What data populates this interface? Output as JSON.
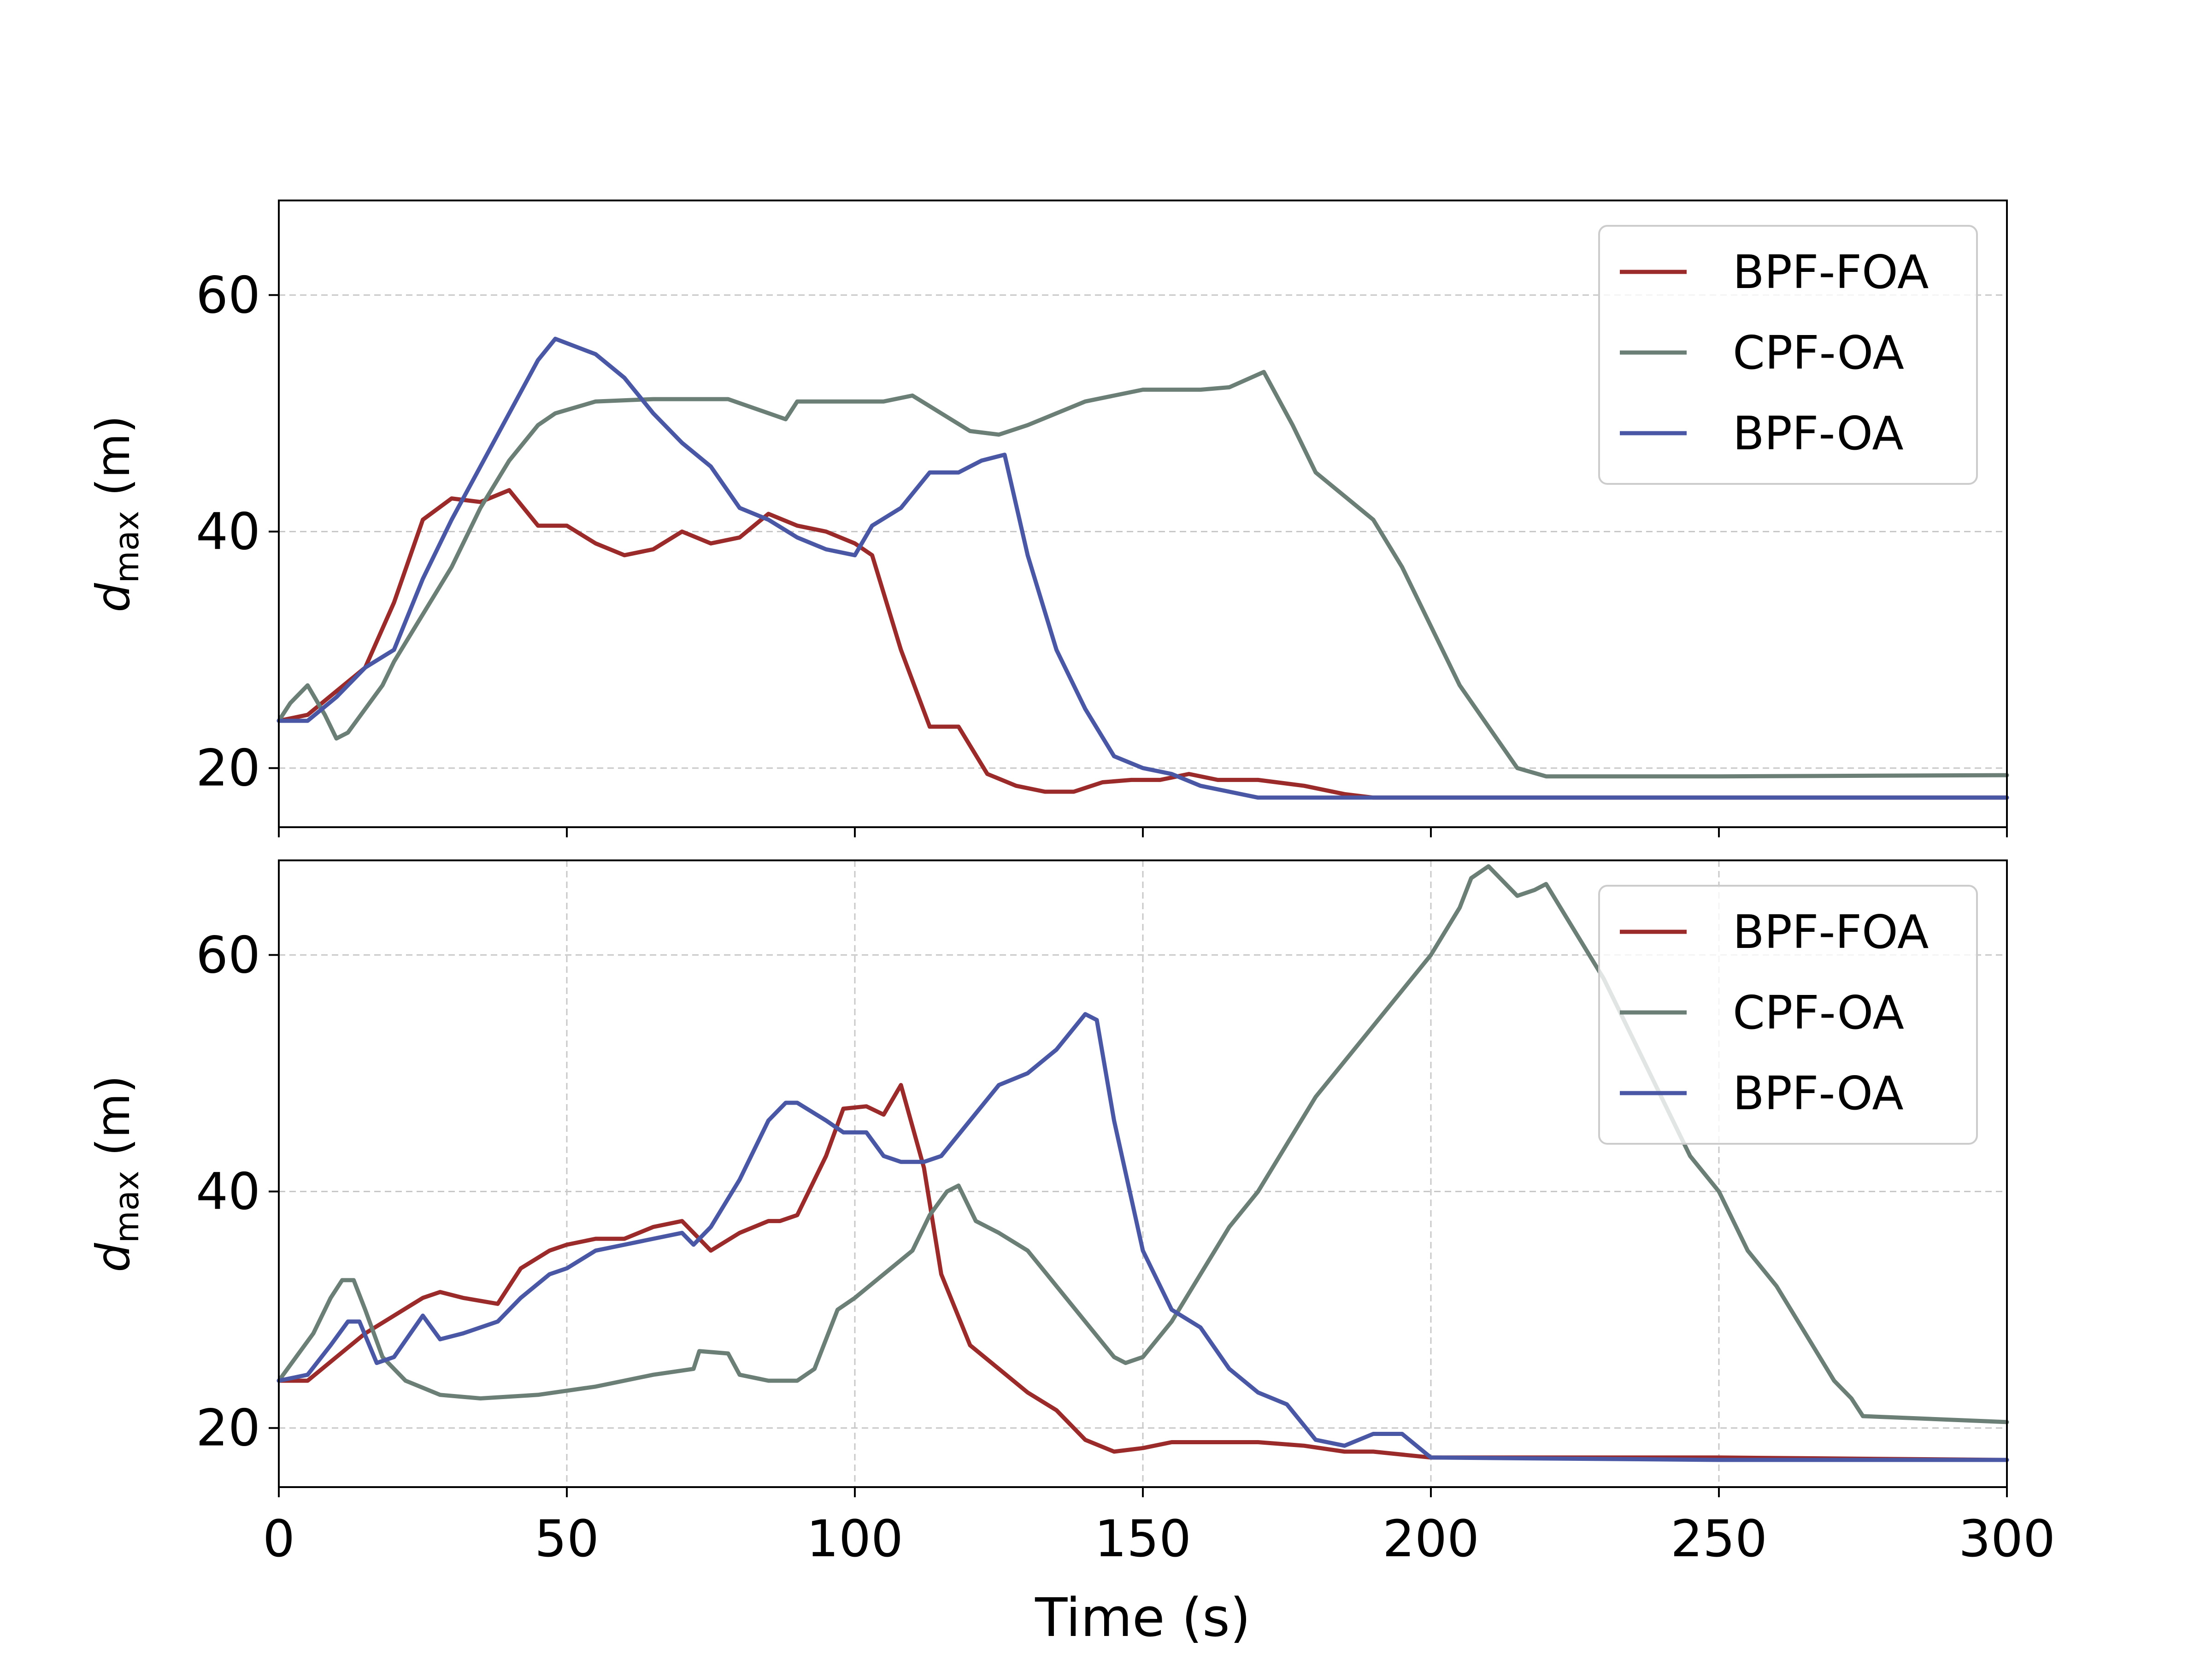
{
  "figure": {
    "xlabel": "Time (s)",
    "ylabel_main": "d",
    "ylabel_sub": "max",
    "ylabel_unit": " (m)"
  },
  "colors": {
    "BPF-FOA": "#9b2b2b",
    "CPF-OA": "#6b7f77",
    "BPF-OA": "#4a57a5"
  },
  "chart_data": [
    {
      "type": "line",
      "title": "",
      "xlabel": "",
      "ylabel": "d_max (m)",
      "xlim": [
        0,
        300
      ],
      "ylim": [
        15,
        68
      ],
      "yticks": [
        20,
        40,
        60
      ],
      "ytick_labels": [
        "20",
        "40",
        "60"
      ],
      "xtick_labels_shown": false,
      "grid": "horizontal dashed",
      "legend": "top-right",
      "series": [
        {
          "name": "BPF-FOA",
          "x": [
            0,
            5,
            10,
            15,
            20,
            25,
            30,
            35,
            40,
            45,
            50,
            55,
            60,
            65,
            70,
            75,
            80,
            85,
            90,
            95,
            100,
            103,
            108,
            113,
            118,
            123,
            128,
            133,
            138,
            143,
            148,
            153,
            158,
            163,
            170,
            178,
            185,
            190,
            200,
            220,
            250,
            280,
            300
          ],
          "y": [
            24,
            24.5,
            26.5,
            28.5,
            34,
            41,
            42.8,
            42.5,
            43.5,
            40.5,
            40.5,
            39,
            38,
            38.5,
            40,
            39,
            39.5,
            41.5,
            40.5,
            40,
            39,
            38,
            30,
            23.5,
            23.5,
            19.5,
            18.5,
            18,
            18,
            18.8,
            19,
            19,
            19.5,
            19,
            19,
            18.5,
            17.8,
            17.5,
            17.5,
            17.5,
            17.5,
            17.5,
            17.5
          ]
        },
        {
          "name": "CPF-OA",
          "x": [
            0,
            2,
            5,
            8,
            10,
            12,
            15,
            18,
            20,
            25,
            30,
            35,
            40,
            45,
            48,
            55,
            65,
            78,
            88,
            90,
            95,
            100,
            105,
            110,
            115,
            120,
            125,
            130,
            140,
            150,
            160,
            165,
            171,
            176,
            180,
            185,
            190,
            195,
            200,
            205,
            210,
            215,
            220,
            230,
            250,
            300
          ],
          "y": [
            24,
            25.5,
            27,
            24.5,
            22.5,
            23,
            25,
            27,
            29,
            33,
            37,
            42,
            46,
            49,
            50,
            51,
            51.2,
            51.2,
            49.5,
            51,
            51,
            51,
            51,
            51.5,
            50,
            48.5,
            48.2,
            49,
            51,
            52,
            52,
            52.2,
            53.5,
            49,
            45,
            43,
            41,
            37,
            32,
            27,
            23.5,
            20,
            19.3,
            19.3,
            19.3,
            19.4
          ]
        },
        {
          "name": "BPF-OA",
          "x": [
            0,
            5,
            10,
            15,
            20,
            25,
            30,
            35,
            40,
            45,
            48,
            55,
            60,
            65,
            70,
            75,
            80,
            85,
            90,
            95,
            100,
            103,
            108,
            113,
            118,
            122,
            126,
            130,
            135,
            140,
            145,
            150,
            155,
            160,
            165,
            170,
            180,
            190,
            200,
            250,
            300
          ],
          "y": [
            24,
            24,
            26,
            28.5,
            30,
            36,
            41,
            45.5,
            50,
            54.5,
            56.3,
            55,
            53,
            50,
            47.5,
            45.5,
            42,
            41,
            39.5,
            38.5,
            38,
            40.5,
            42,
            45,
            45,
            46,
            46.5,
            38,
            30,
            25,
            21,
            20,
            19.5,
            18.5,
            18,
            17.5,
            17.5,
            17.5,
            17.5,
            17.5,
            17.5
          ]
        }
      ]
    },
    {
      "type": "line",
      "title": "",
      "xlabel": "Time (s)",
      "ylabel": "d_max (m)",
      "xlim": [
        0,
        300
      ],
      "ylim": [
        15,
        68
      ],
      "xticks": [
        0,
        50,
        100,
        150,
        200,
        250,
        300
      ],
      "xtick_labels": [
        "0",
        "50",
        "100",
        "150",
        "200",
        "250",
        "300"
      ],
      "yticks": [
        20,
        40,
        60
      ],
      "ytick_labels": [
        "20",
        "40",
        "60"
      ],
      "grid": "both dashed",
      "legend": "top-right",
      "series": [
        {
          "name": "BPF-FOA",
          "x": [
            0,
            5,
            10,
            15,
            20,
            25,
            28,
            32,
            38,
            42,
            47,
            50,
            55,
            60,
            65,
            70,
            72,
            75,
            80,
            85,
            87,
            90,
            95,
            98,
            102,
            105,
            108,
            112,
            115,
            120,
            125,
            130,
            135,
            140,
            145,
            150,
            155,
            160,
            170,
            178,
            185,
            190,
            200,
            250,
            300
          ],
          "y": [
            24,
            24,
            26,
            28,
            29.5,
            31,
            31.5,
            31,
            30.5,
            33.5,
            35,
            35.5,
            36,
            36,
            37,
            37.5,
            36.5,
            35,
            36.5,
            37.5,
            37.5,
            38,
            43,
            47,
            47.2,
            46.5,
            49,
            42,
            33,
            27,
            25,
            23,
            21.5,
            19,
            18,
            18.3,
            18.8,
            18.8,
            18.8,
            18.5,
            18,
            18,
            17.5,
            17.5,
            17.3
          ]
        },
        {
          "name": "CPF-OA",
          "x": [
            0,
            3,
            6,
            9,
            11,
            13,
            15,
            18,
            22,
            28,
            35,
            45,
            55,
            65,
            72,
            73,
            78,
            80,
            85,
            90,
            93,
            97,
            100,
            105,
            110,
            113,
            116,
            118,
            121,
            125,
            130,
            135,
            140,
            145,
            147,
            150,
            155,
            160,
            165,
            170,
            175,
            180,
            185,
            190,
            195,
            200,
            205,
            207,
            210,
            215,
            218,
            220,
            225,
            230,
            235,
            240,
            245,
            250,
            255,
            260,
            265,
            270,
            273,
            275,
            300
          ],
          "y": [
            24,
            26,
            28,
            31,
            32.5,
            32.5,
            30,
            26,
            24,
            22.8,
            22.5,
            22.8,
            23.5,
            24.5,
            25,
            26.5,
            26.3,
            24.5,
            24,
            24,
            25,
            30,
            31,
            33,
            35,
            38,
            40,
            40.5,
            37.5,
            36.5,
            35,
            32,
            29,
            26,
            25.5,
            26,
            29,
            33,
            37,
            40,
            44,
            48,
            51,
            54,
            57,
            60,
            64,
            66.5,
            67.5,
            65,
            65.5,
            66,
            62,
            58,
            53,
            48,
            43,
            40,
            35,
            32,
            28,
            24,
            22.5,
            21,
            20.5
          ]
        },
        {
          "name": "BPF-OA",
          "x": [
            0,
            5,
            9,
            12,
            14,
            17,
            20,
            25,
            28,
            32,
            38,
            42,
            47,
            50,
            55,
            60,
            65,
            70,
            72,
            75,
            80,
            85,
            88,
            90,
            95,
            98,
            102,
            105,
            108,
            112,
            115,
            120,
            125,
            130,
            135,
            140,
            142,
            145,
            150,
            155,
            160,
            165,
            170,
            175,
            180,
            185,
            190,
            195,
            200,
            250,
            300
          ],
          "y": [
            24,
            24.5,
            27,
            29,
            29,
            25.5,
            26,
            29.5,
            27.5,
            28,
            29,
            31,
            33,
            33.5,
            35,
            35.5,
            36,
            36.5,
            35.5,
            37,
            41,
            46,
            47.5,
            47.5,
            46,
            45,
            45,
            43,
            42.5,
            42.5,
            43,
            46,
            49,
            50,
            52,
            55,
            54.5,
            46,
            35,
            30,
            28.5,
            25,
            23,
            22,
            19,
            18.5,
            19.5,
            19.5,
            17.5,
            17.3,
            17.3
          ]
        }
      ]
    }
  ]
}
